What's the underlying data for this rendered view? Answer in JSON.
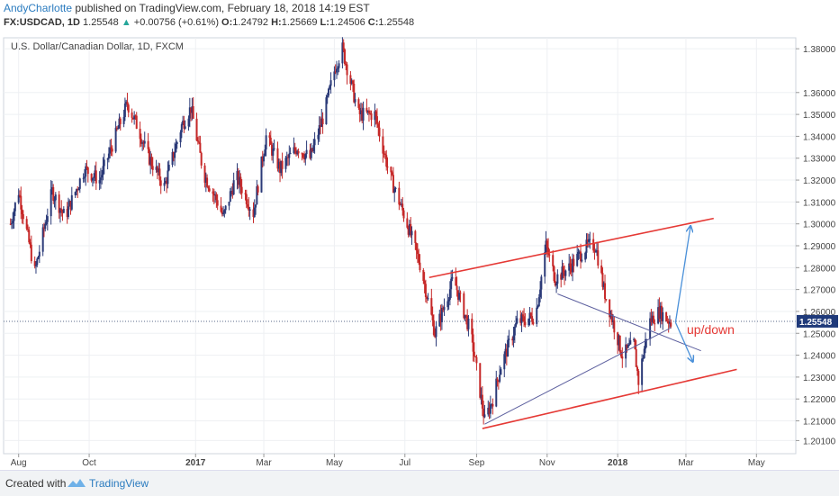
{
  "header": {
    "author": "AndyCharlotte",
    "published_text": " published on TradingView.com, February 18, 2018 14:19 EST",
    "symbol": "FX:USDCAD, 1D",
    "last": "1.25548",
    "change_arrow": "▲",
    "change": "+0.00756 (+0.61%)",
    "o_label": "O:",
    "o_value": "1.24792",
    "h_label": "H:",
    "h_value": "1.25669",
    "l_label": "L:",
    "l_value": "1.24506",
    "c_label": "C:",
    "c_value": "1.25548"
  },
  "footer": {
    "created_with": "Created with",
    "tradingview": "TradingView"
  },
  "chart_data": {
    "type": "candlestick",
    "title": "U.S. Dollar/Canadian Dollar, 1D, FXCM",
    "ylim": [
      1.195,
      1.385
    ],
    "y_ticks": [
      "1.38000",
      "1.36000",
      "1.35000",
      "1.34000",
      "1.33000",
      "1.32000",
      "1.31000",
      "1.30000",
      "1.29000",
      "1.28000",
      "1.27000",
      "1.26000",
      "1.25000",
      "1.24000",
      "1.23000",
      "1.22000",
      "1.21000",
      "1.20100"
    ],
    "x_ticks": [
      "Aug",
      "Oct",
      "2017",
      "Mar",
      "May",
      "Jul",
      "Sep",
      "Nov",
      "2018",
      "Mar",
      "May"
    ],
    "last_price_label": "1.25548",
    "last_price": 1.25548,
    "annotation": "up/down",
    "colors": {
      "up": "#2b3a78",
      "down": "#c62828",
      "channel": "#e53935",
      "wedge": "#5c5f9e",
      "arrow": "#4a90d9",
      "grid": "#eef0f3"
    },
    "path_points": [
      [
        "2016-07-25",
        1.3
      ],
      [
        "2016-08-01",
        1.315
      ],
      [
        "2016-08-15",
        1.278
      ],
      [
        "2016-08-30",
        1.315
      ],
      [
        "2016-09-10",
        1.303
      ],
      [
        "2016-09-27",
        1.325
      ],
      [
        "2016-10-10",
        1.32
      ],
      [
        "2016-10-25",
        1.342
      ],
      [
        "2016-11-03",
        1.355
      ],
      [
        "2016-11-13",
        1.343
      ],
      [
        "2016-11-20",
        1.332
      ],
      [
        "2016-12-05",
        1.317
      ],
      [
        "2016-12-20",
        1.345
      ],
      [
        "2016-12-28",
        1.353
      ],
      [
        "2017-01-08",
        1.323
      ],
      [
        "2017-01-20",
        1.31
      ],
      [
        "2017-01-25",
        1.303
      ],
      [
        "2017-02-05",
        1.322
      ],
      [
        "2017-02-20",
        1.305
      ],
      [
        "2017-03-03",
        1.34
      ],
      [
        "2017-03-15",
        1.325
      ],
      [
        "2017-03-30",
        1.335
      ],
      [
        "2017-04-10",
        1.33
      ],
      [
        "2017-04-22",
        1.35
      ],
      [
        "2017-05-02",
        1.372
      ],
      [
        "2017-05-08",
        1.38
      ],
      [
        "2017-05-22",
        1.35
      ],
      [
        "2017-06-05",
        1.35
      ],
      [
        "2017-06-18",
        1.322
      ],
      [
        "2017-07-03",
        1.3
      ],
      [
        "2017-07-15",
        1.28
      ],
      [
        "2017-07-27",
        1.25
      ],
      [
        "2017-08-12",
        1.275
      ],
      [
        "2017-08-27",
        1.25
      ],
      [
        "2017-09-08",
        1.21
      ],
      [
        "2017-09-15",
        1.22
      ],
      [
        "2017-09-22",
        1.235
      ],
      [
        "2017-10-06",
        1.255
      ],
      [
        "2017-10-22",
        1.258
      ],
      [
        "2017-10-31",
        1.29
      ],
      [
        "2017-11-08",
        1.275
      ],
      [
        "2017-11-20",
        1.28
      ],
      [
        "2017-11-28",
        1.285
      ],
      [
        "2017-12-06",
        1.29
      ],
      [
        "2017-12-13",
        1.29
      ],
      [
        "2017-12-20",
        1.27
      ],
      [
        "2017-12-28",
        1.255
      ],
      [
        "2018-01-05",
        1.24
      ],
      [
        "2018-01-15",
        1.245
      ],
      [
        "2018-01-19",
        1.228
      ],
      [
        "2018-01-28",
        1.255
      ],
      [
        "2018-02-06",
        1.26
      ],
      [
        "2018-02-16",
        1.255
      ]
    ],
    "lines": [
      {
        "name": "channel-upper",
        "x1": "2017-07-22",
        "y1": 1.2755,
        "x2": "2018-03-25",
        "y2": 1.3025
      },
      {
        "name": "channel-lower",
        "x1": "2017-09-06",
        "y1": 1.2065,
        "x2": "2018-04-14",
        "y2": 1.2335
      },
      {
        "name": "wedge-upper",
        "x1": "2017-11-10",
        "y1": 1.268,
        "x2": "2018-03-14",
        "y2": 1.242
      },
      {
        "name": "wedge-lower",
        "x1": "2017-09-08",
        "y1": 1.2085,
        "x2": "2018-02-16",
        "y2": 1.2525
      }
    ],
    "arrows": [
      {
        "name": "arrow-up",
        "x1": "2018-02-20",
        "y1": 1.255,
        "x2": "2018-03-05",
        "y2": 1.299
      },
      {
        "name": "arrow-down",
        "x1": "2018-02-20",
        "y1": 1.255,
        "x2": "2018-03-07",
        "y2": 1.237
      }
    ]
  }
}
